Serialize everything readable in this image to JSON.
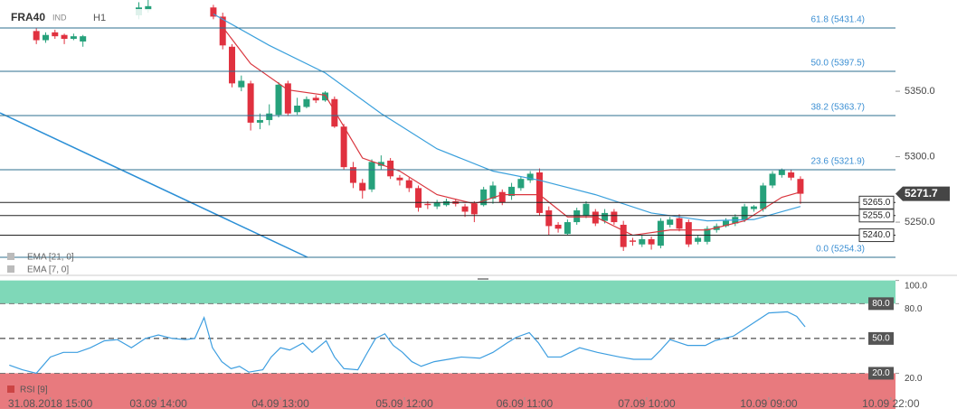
{
  "chart_data": {
    "type": "candlestick",
    "symbol": "FRA40",
    "instrument_type": "IND",
    "timeframe": "H1",
    "xlim": [
      -3.9,
      92.2
    ],
    "xticks": [
      {
        "value": 1.5,
        "label": "31.08.2018 15:00"
      },
      {
        "value": 13.1,
        "label": "03.09 14:00"
      },
      {
        "value": 26.2,
        "label": "04.09 13:00"
      },
      {
        "value": 39.5,
        "label": "05.09 12:00"
      },
      {
        "value": 52.4,
        "label": "06.09 11:00"
      },
      {
        "value": 65.5,
        "label": "07.09 10:00"
      },
      {
        "value": 78.6,
        "label": "10.09 09:00"
      },
      {
        "value": 91.7,
        "label": "10.09 22:00"
      }
    ],
    "ylim": [
      5212.8,
      5419.7
    ],
    "yticks": [
      {
        "value": 5250,
        "label": "5250.0"
      },
      {
        "value": 5300,
        "label": "5300.0"
      },
      {
        "value": 5350,
        "label": "5350.0"
      }
    ],
    "up_color": "#26a17b",
    "down_color": "#e0313f",
    "open": [
      5396,
      5389,
      5395,
      5393,
      5390,
      5388,
      null,
      null,
      null,
      null,
      null,
      5408,
      5412,
      null,
      null,
      null,
      null,
      null,
      null,
      5414,
      5407,
      5384,
      5353,
      5356,
      5326,
      5328,
      5332,
      5356,
      5334,
      5338,
      5345,
      5343,
      5344,
      5323,
      5292,
      5280,
      5275,
      5293,
      5297,
      5284,
      5282,
      5276,
      5264,
      5262,
      5263,
      5266,
      5262,
      5264,
      5263,
      5268,
      5273,
      5270,
      5276,
      5282,
      5288,
      5259,
      5248,
      5241,
      5250,
      5255,
      5258,
      5251,
      5258,
      5248,
      5236,
      5233,
      5237,
      5232,
      5248,
      5253,
      5250,
      5235,
      5235,
      5244,
      5247,
      5249,
      5252,
      5260,
      5260,
      5278,
      5286,
      5288,
      5283
    ],
    "high": [
      5398,
      5395,
      5397,
      5394,
      5394,
      5393,
      null,
      null,
      null,
      null,
      null,
      5418,
      5420,
      null,
      null,
      null,
      null,
      null,
      null,
      5416,
      5410,
      5386,
      5362,
      5358,
      5333,
      5340,
      5357,
      5358,
      5345,
      5346,
      5347,
      5350,
      5346,
      5325,
      5296,
      5283,
      5298,
      5301,
      5299,
      5286,
      5284,
      5278,
      5266,
      5267,
      5268,
      5268,
      5264,
      5266,
      5277,
      5281,
      5275,
      5280,
      5285,
      5289,
      5291,
      5262,
      5250,
      5252,
      5261,
      5266,
      5260,
      5260,
      5260,
      5251,
      5238,
      5240,
      5239,
      5253,
      5254,
      5256,
      5252,
      5240,
      5247,
      5249,
      5253,
      5256,
      5264,
      5263,
      5280,
      5289,
      5291,
      5290,
      5285
    ],
    "low": [
      5386,
      5387,
      5390,
      5386,
      5389,
      5384,
      null,
      null,
      null,
      null,
      null,
      5405,
      5410,
      null,
      null,
      null,
      null,
      null,
      null,
      5405,
      5382,
      5353,
      5350,
      5320,
      5321,
      5324,
      5330,
      5331,
      5332,
      5337,
      5341,
      5342,
      5322,
      5290,
      5276,
      5268,
      5273,
      5290,
      5283,
      5278,
      5273,
      5258,
      5260,
      5260,
      5262,
      5262,
      5254,
      5250,
      5262,
      5264,
      5263,
      5267,
      5274,
      5280,
      5255,
      5240,
      5242,
      5240,
      5248,
      5253,
      5247,
      5249,
      5248,
      5228,
      5232,
      5231,
      5229,
      5230,
      5246,
      5243,
      5231,
      5233,
      5233,
      5242,
      5246,
      5247,
      5250,
      5258,
      5258,
      5276,
      5284,
      5282,
      5264
    ],
    "close": [
      5389,
      5393,
      5392,
      5390,
      5392,
      5392,
      null,
      null,
      null,
      null,
      null,
      5414,
      5415,
      null,
      null,
      null,
      null,
      null,
      null,
      5407,
      5385,
      5356,
      5358,
      5326,
      5328,
      5333,
      5355,
      5333,
      5339,
      5344,
      5343,
      5349,
      5323,
      5292,
      5280,
      5274,
      5296,
      5296,
      5285,
      5282,
      5276,
      5261,
      5263,
      5265,
      5266,
      5264,
      5258,
      5256,
      5275,
      5278,
      5265,
      5277,
      5283,
      5287,
      5257,
      5247,
      5245,
      5250,
      5259,
      5264,
      5249,
      5257,
      5250,
      5231,
      5235,
      5237,
      5233,
      5251,
      5252,
      5245,
      5233,
      5238,
      5245,
      5247,
      5251,
      5254,
      5262,
      5262,
      5278,
      5287,
      5290,
      5284,
      5271.7
    ],
    "current_price": {
      "value": 5271.7,
      "label": "5271.7"
    },
    "levels": [
      {
        "value": 5265,
        "label": "5265.0"
      },
      {
        "value": 5255,
        "label": "5255.0"
      },
      {
        "value": 5240,
        "label": "5240.0"
      }
    ],
    "fibonacci": [
      "61.8 (5431.4)",
      "50.0 (5397.5)",
      "38.2 (5363.7)",
      "23.6 (5321.9)",
      "0.0 (5254.3)"
    ],
    "series": [
      {
        "name": "EMA [21, 0]",
        "color": "#3aa0dc",
        "x": [
          19,
          25,
          31,
          37,
          43,
          49,
          54,
          60,
          66,
          72,
          77,
          82
        ],
        "values": [
          5409,
          5385,
          5364,
          5333,
          5306,
          5289,
          5282,
          5271,
          5257,
          5251,
          5252,
          5262
        ]
      },
      {
        "name": "EMA [7, 0]",
        "color": "#d9363e",
        "x": [
          20,
          23,
          27,
          31,
          35,
          39,
          43,
          47,
          50,
          54,
          57,
          60,
          64,
          68,
          72,
          76,
          80,
          82
        ],
        "values": [
          5399,
          5371,
          5351,
          5347,
          5299,
          5289,
          5271,
          5264,
          5271,
          5271,
          5254,
          5254,
          5240,
          5244,
          5244,
          5251,
          5269,
          5273
        ]
      }
    ],
    "indicator": {
      "type": "line",
      "name": "RSI [9]",
      "color": "#3d9ee0",
      "x": [
        -2.9,
        -1.5,
        0,
        1.5,
        2.9,
        4.4,
        5.8,
        7.3,
        8.7,
        10.2,
        11.7,
        13.1,
        14.6,
        16,
        17,
        18,
        18.9,
        19.9,
        20.9,
        21.8,
        22.8,
        24.3,
        25.2,
        26.2,
        27.2,
        28.6,
        29.6,
        31.1,
        32,
        33,
        34.5,
        35.4,
        36.4,
        37.4,
        38.3,
        39.3,
        40.3,
        41.3,
        42.7,
        44.2,
        45.6,
        47.6,
        49,
        50.5,
        51.5,
        52.9,
        53.9,
        54.9,
        56.3,
        58.3,
        60.2,
        62.6,
        64.1,
        66,
        67,
        68,
        69.9,
        71.8,
        72.8,
        74.8,
        76.7,
        78.6,
        80.6,
        81.6,
        82.5
      ],
      "values": [
        27,
        23,
        20,
        34,
        38,
        38,
        42,
        48,
        49,
        42,
        50,
        53,
        50,
        49,
        50,
        68,
        42,
        30,
        24,
        26,
        21,
        23,
        34,
        42,
        40,
        46,
        38,
        48,
        34,
        24,
        23,
        36,
        50,
        54,
        44,
        38,
        30,
        26,
        30,
        32,
        34,
        33,
        38,
        46,
        51,
        55,
        46,
        34,
        34,
        42,
        38,
        34,
        32,
        32,
        40,
        49,
        44,
        44,
        48,
        52,
        62,
        72,
        73,
        69,
        60
      ],
      "ylim": [
        -10,
        100.5
      ],
      "yticks": [
        {
          "value": 100,
          "label": "100.0"
        },
        {
          "value": 80,
          "label": "80.0"
        },
        {
          "value": 20,
          "label": "20.0"
        }
      ],
      "levels": [
        {
          "value": 80,
          "label": "80.0"
        },
        {
          "value": 50,
          "label": "50.0"
        },
        {
          "value": 20,
          "label": "20.0"
        }
      ],
      "overbought_color": "#7fd8b8",
      "oversold_color": "#e87a7e"
    }
  }
}
